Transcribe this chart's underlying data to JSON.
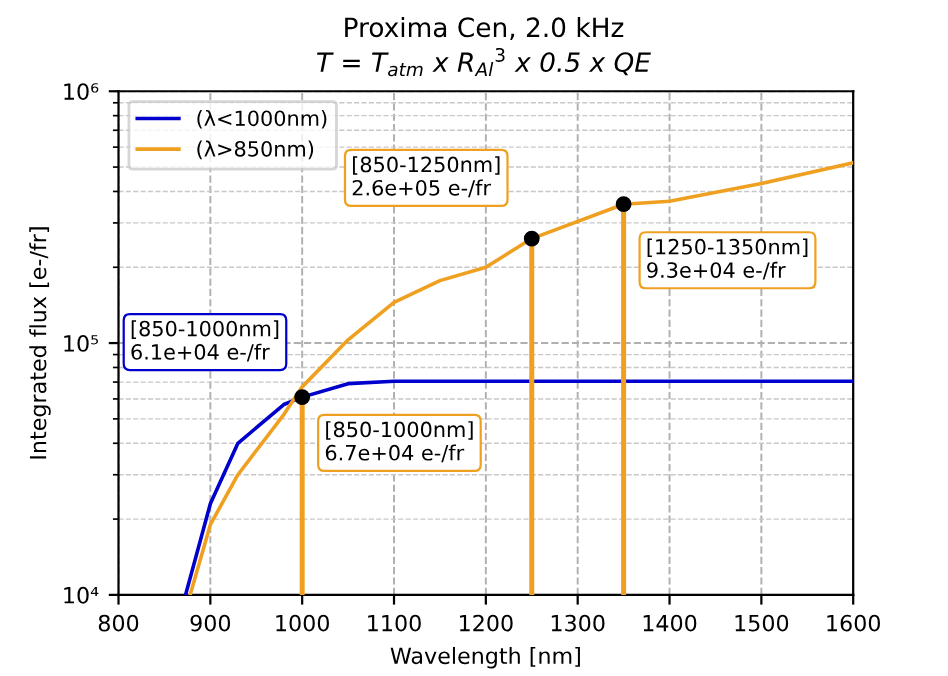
{
  "chart_data": {
    "type": "line",
    "title": "Proxima Cen, 2.0 kHz",
    "subtitle": "T = T$_{atm}$ x R$_{Al}$$^{3}$ x 0.5 x QE",
    "xlabel": "Wavelength [nm]",
    "ylabel": "Integrated flux [e-/fr]",
    "log": "y",
    "grid": true,
    "legend": "top left",
    "xlim": [
      800,
      1600
    ],
    "xticks": [
      800,
      900,
      1000,
      1100,
      1200,
      1300,
      1400,
      1500,
      1600
    ],
    "ylim": [
      10000,
      1000000
    ],
    "yticks": [
      {
        "value": 10000,
        "label": "10⁴"
      },
      {
        "value": 100000,
        "label": "10⁵"
      },
      {
        "value": 1000000,
        "label": "10⁶"
      }
    ],
    "series": [
      {
        "name": "(λ<1000nm)",
        "color": "#0000cc",
        "x": [
          873,
          900,
          930,
          980,
          1000,
          1050,
          1100,
          1600
        ],
        "values": [
          10000,
          23000,
          40000,
          57000,
          61000,
          69000,
          70500,
          70500
        ]
      },
      {
        "name": "(λ>850nm)",
        "color": "#f0a020",
        "x": [
          878,
          900,
          930,
          980,
          1000,
          1050,
          1100,
          1150,
          1200,
          1250,
          1350,
          1400,
          1500,
          1600
        ],
        "values": [
          10000,
          19000,
          30000,
          52000,
          67000,
          103000,
          145000,
          177000,
          200000,
          260000,
          356000,
          366000,
          430000,
          520000
        ]
      },
      {
        "type": "lollipop",
        "color": "#f0a020",
        "colors": [
          "#000000",
          "#000000",
          "#000000"
        ],
        "marker": "circle",
        "x": [
          1000,
          1250,
          1350
        ],
        "values": [
          61000,
          260000,
          356000
        ]
      }
    ],
    "annotations": [
      {
        "text": "[850-1000nm]\n6.1e+04 e-/fr",
        "x": 1000,
        "y": 61000
      },
      {
        "text": "[850-1000nm]\n6.7e+04 e-/fr",
        "x": 1000,
        "y": 67000
      },
      {
        "text": "[850-1250nm]\n2.6e+05 e-/fr",
        "x": 1250,
        "y": 260000
      },
      {
        "text": "[1250-1350nm]\n9.3e+04 e-/fr",
        "x": 1350,
        "y": 356000
      }
    ]
  }
}
